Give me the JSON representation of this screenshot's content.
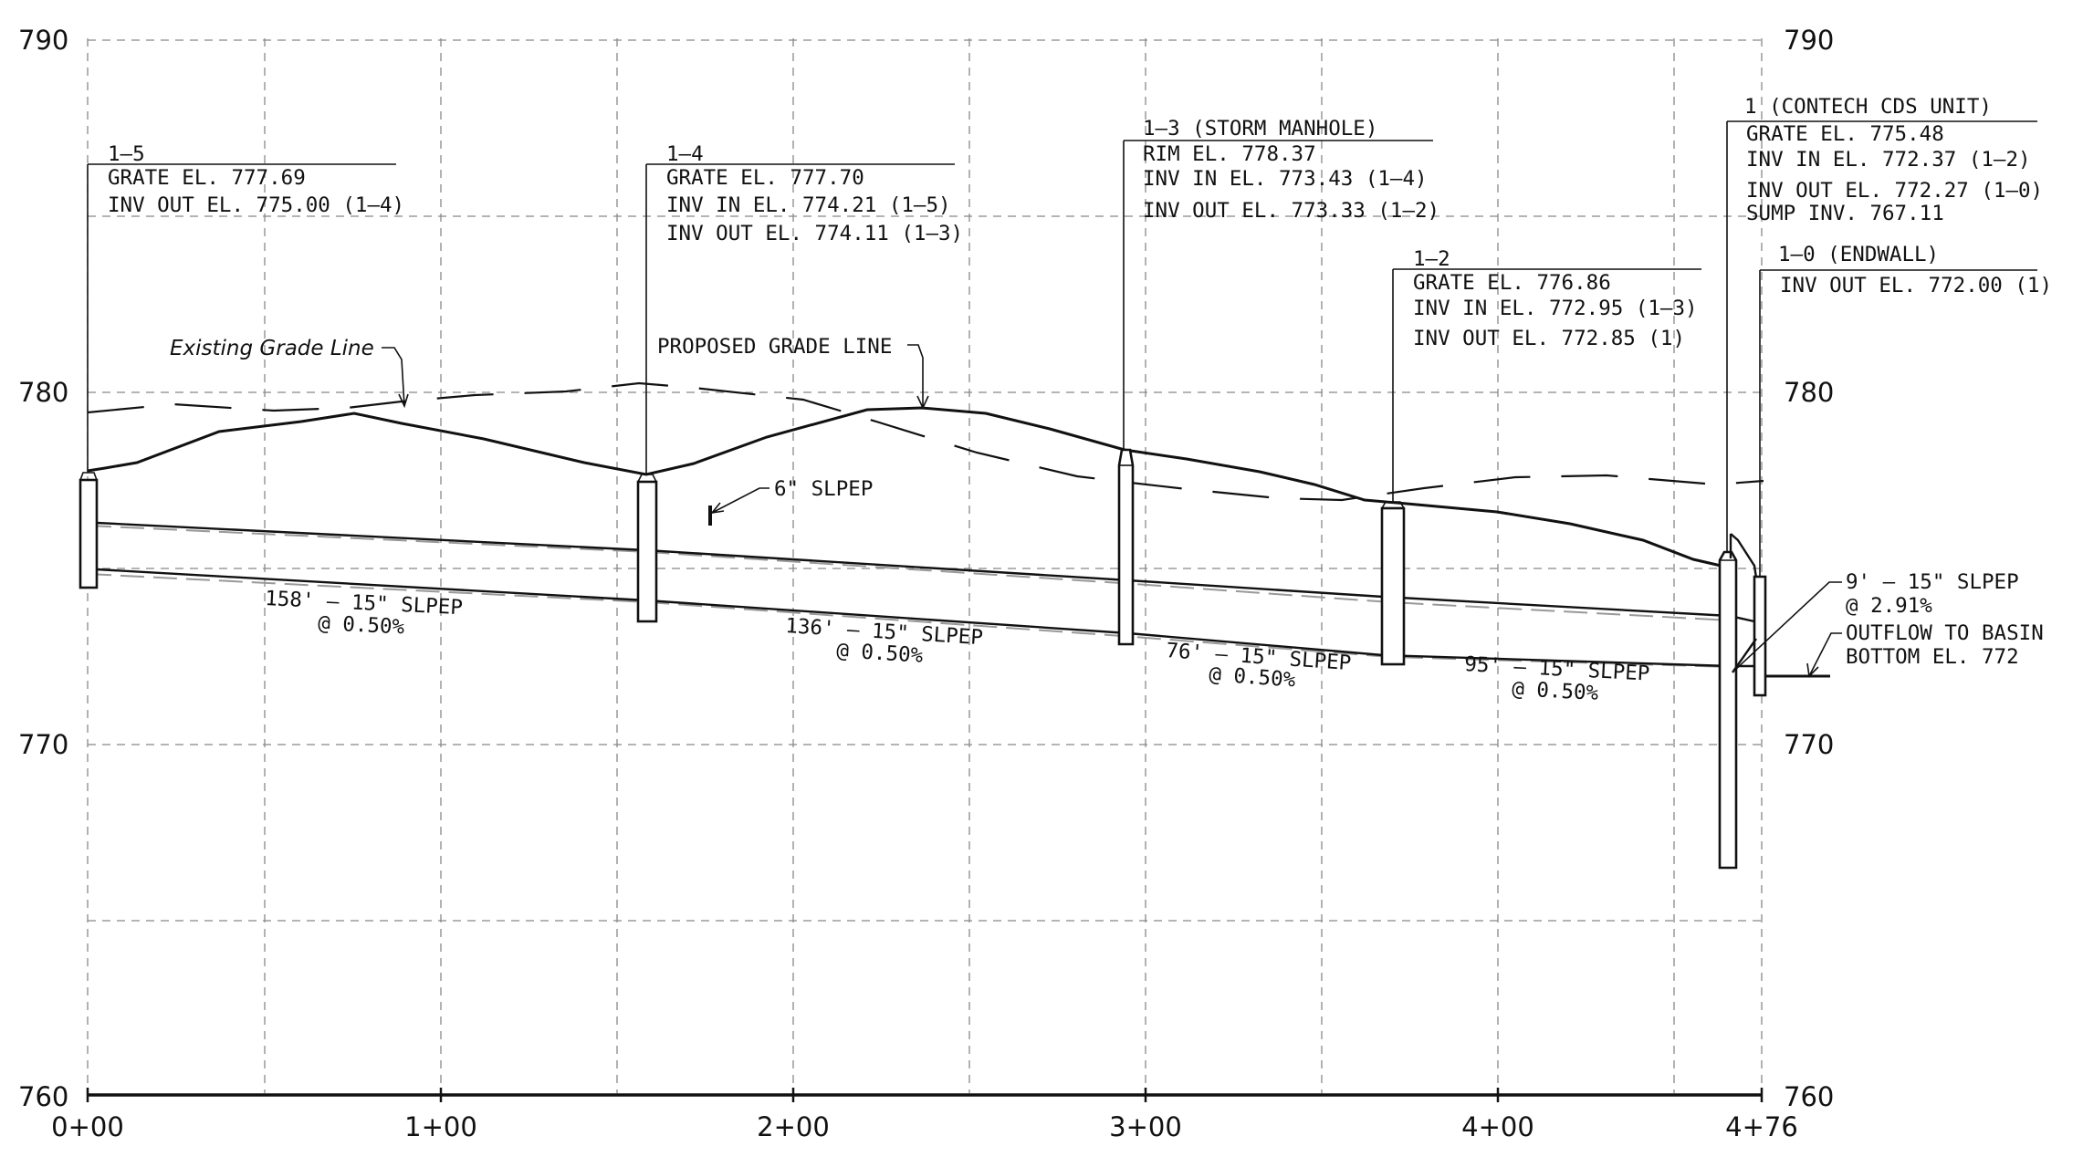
{
  "axes": {
    "y_ticks_left": [
      "790",
      "780",
      "770",
      "760"
    ],
    "y_ticks_right": [
      "790",
      "780",
      "770",
      "760"
    ],
    "x_ticks": [
      "0+00",
      "1+00",
      "2+00",
      "3+00",
      "4+00",
      "4+76"
    ]
  },
  "grade_labels": {
    "existing": "Existing Grade Line",
    "proposed": "PROPOSED GRADE LINE"
  },
  "structures": [
    {
      "title": "1–5",
      "lines": [
        "GRATE EL. 777.69",
        "INV OUT EL. 775.00 (1–4)"
      ]
    },
    {
      "title": "1–4",
      "lines": [
        "GRATE EL. 777.70",
        "INV IN EL. 774.21 (1–5)",
        "INV OUT EL. 774.11 (1–3)"
      ]
    },
    {
      "title": "1–3 (STORM MANHOLE)",
      "lines": [
        "RIM EL. 778.37",
        "INV IN EL. 773.43 (1–4)",
        "INV OUT EL. 773.33 (1–2)"
      ]
    },
    {
      "title": "1–2",
      "lines": [
        "GRATE EL. 776.86",
        "INV IN EL. 772.95 (1–3)",
        "INV OUT EL. 772.85 (1)"
      ]
    },
    {
      "title": "1 (CONTECH CDS UNIT)",
      "lines": [
        "GRATE EL. 775.48",
        "INV IN EL. 772.37 (1–2)",
        "INV OUT EL. 772.27 (1–0)",
        "SUMP INV. 767.11"
      ]
    },
    {
      "title": "1–0 (ENDWALL)",
      "lines": [
        "INV OUT EL. 772.00 (1)"
      ]
    }
  ],
  "pipes": [
    {
      "len": "158' – 15\" SLPEP",
      "slope": "@ 0.50%"
    },
    {
      "len": "136' – 15\" SLPEP",
      "slope": "@ 0.50%"
    },
    {
      "len": "76' – 15\" SLPEP",
      "slope": "@ 0.50%"
    },
    {
      "len": "95' – 15\" SLPEP",
      "slope": "@ 0.50%"
    },
    {
      "len": "9' – 15\" SLPEP",
      "slope": "@ 2.91%"
    }
  ],
  "notes": {
    "six_inch": "6\" SLPEP",
    "outflow_1": "OUTFLOW TO BASIN",
    "outflow_2": "BOTTOM EL. 772"
  }
}
